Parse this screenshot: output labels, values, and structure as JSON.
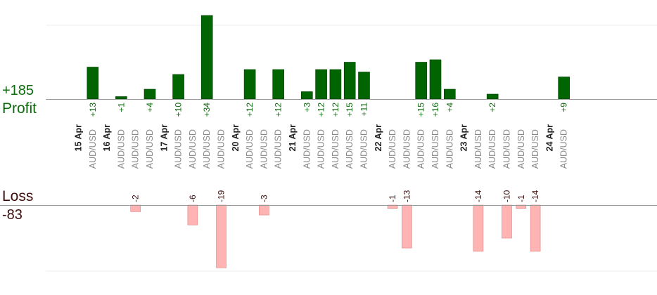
{
  "colors": {
    "profit_bar": "#006400",
    "profit_bar_edge": "#003d00",
    "loss_bar": "#ffb3b3",
    "loss_bar_edge": "#e08080",
    "profit_text": "#0c6b0c",
    "loss_text": "#3d0c0c",
    "axis_line": "#999999",
    "grid_line": "#eeeeee",
    "category_text": "#888888",
    "date_text": "#222222"
  },
  "summary": {
    "profit_total": "+185",
    "profit_label": "Profit",
    "loss_label": "Loss",
    "loss_total": "-83"
  },
  "chart_data": {
    "type": "bar",
    "title": "",
    "category": "AUD/USD",
    "x_label_rotation": "vertical",
    "grid": true,
    "profit_axis_range": [
      0,
      30
    ],
    "loss_axis_range": [
      -20,
      0
    ],
    "columns": [
      {
        "date": "15 Apr"
      },
      {
        "pair": "AUD/USD",
        "profit": 13,
        "profit_label": "+13"
      },
      {
        "date": "16 Apr"
      },
      {
        "pair": "AUD/USD",
        "profit": 1,
        "profit_label": "+1"
      },
      {
        "pair": "AUD/USD",
        "loss": -2,
        "loss_label": "-2"
      },
      {
        "pair": "AUD/USD",
        "profit": 4,
        "profit_label": "+4"
      },
      {
        "date": "17 Apr"
      },
      {
        "pair": "AUD/USD",
        "profit": 10,
        "profit_label": "+10"
      },
      {
        "pair": "AUD/USD",
        "loss": -6,
        "loss_label": "-6"
      },
      {
        "pair": "AUD/USD",
        "profit": 34,
        "profit_label": "+34"
      },
      {
        "pair": "AUD/USD",
        "loss": -19,
        "loss_label": "-19"
      },
      {
        "date": "20 Apr"
      },
      {
        "pair": "AUD/USD",
        "profit": 12,
        "profit_label": "+12"
      },
      {
        "pair": "AUD/USD",
        "loss": -3,
        "loss_label": "-3"
      },
      {
        "pair": "AUD/USD",
        "profit": 12,
        "profit_label": "+12"
      },
      {
        "date": "21 Apr"
      },
      {
        "pair": "AUD/USD",
        "profit": 3,
        "profit_label": "+3"
      },
      {
        "pair": "AUD/USD",
        "profit": 12,
        "profit_label": "+12"
      },
      {
        "pair": "AUD/USD",
        "profit": 12,
        "profit_label": "+12"
      },
      {
        "pair": "AUD/USD",
        "profit": 15,
        "profit_label": "+15"
      },
      {
        "pair": "AUD/USD",
        "profit": 11,
        "profit_label": "+11"
      },
      {
        "date": "22 Apr"
      },
      {
        "pair": "AUD/USD",
        "loss": -1,
        "loss_label": "-1"
      },
      {
        "pair": "AUD/USD",
        "loss": -13,
        "loss_label": "-13"
      },
      {
        "pair": "AUD/USD",
        "profit": 15,
        "profit_label": "+15"
      },
      {
        "pair": "AUD/USD",
        "profit": 16,
        "profit_label": "+16"
      },
      {
        "pair": "AUD/USD",
        "profit": 4,
        "profit_label": "+4"
      },
      {
        "date": "23 Apr"
      },
      {
        "pair": "AUD/USD",
        "loss": -14,
        "loss_label": "-14"
      },
      {
        "pair": "AUD/USD",
        "profit": 2,
        "profit_label": "+2"
      },
      {
        "pair": "AUD/USD",
        "loss": -10,
        "loss_label": "-10"
      },
      {
        "pair": "AUD/USD",
        "loss": -1,
        "loss_label": "-1"
      },
      {
        "pair": "AUD/USD",
        "loss": -14,
        "loss_label": "-14"
      },
      {
        "date": "24 Apr"
      },
      {
        "pair": "AUD/USD",
        "profit": 9,
        "profit_label": "+9"
      }
    ]
  }
}
